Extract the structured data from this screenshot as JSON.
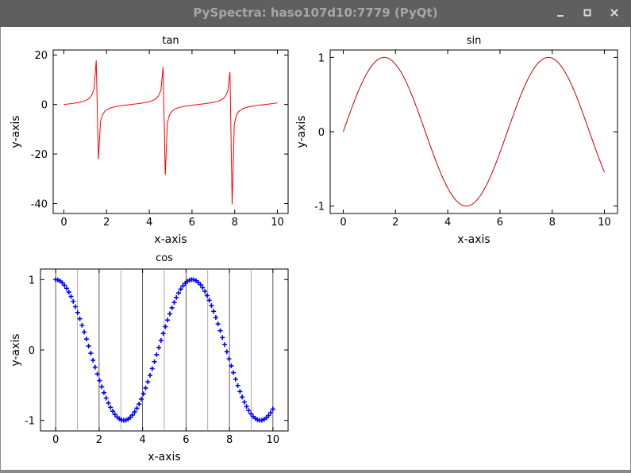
{
  "window": {
    "title": "PySpectra: haso107d10:7779 (PyQt)",
    "controls": [
      "minimize-icon",
      "maximize-icon",
      "close-icon"
    ]
  },
  "colors": {
    "titlebar_bg": "#5f5f5f",
    "titlebar_text": "#a6a6a6",
    "tan_line": "#ff0000",
    "sin_line": "#cc0000",
    "cos_marker": "#0000ff",
    "grid": "#000000"
  },
  "chart_data": [
    {
      "type": "line",
      "title": "tan",
      "xlabel": "x-axis",
      "ylabel": "y-axis",
      "function": "tan(x)",
      "x_range": [
        0,
        10
      ],
      "xlim": [
        -0.5,
        10.5
      ],
      "ylim": [
        -44,
        22
      ],
      "xticks": [
        0,
        2,
        4,
        6,
        8,
        10
      ],
      "yticks": [
        20,
        0,
        -20,
        -40
      ],
      "line_color": "#ff0000",
      "grid": false,
      "clip": [
        -40.5,
        17.8
      ]
    },
    {
      "type": "line",
      "title": "sin",
      "xlabel": "x-axis",
      "ylabel": "y-axis",
      "function": "sin(x)",
      "x_range": [
        0,
        10
      ],
      "xlim": [
        -0.5,
        10.5
      ],
      "ylim": [
        -1.1,
        1.1
      ],
      "xticks": [
        0,
        2,
        4,
        6,
        8,
        10
      ],
      "yticks": [
        1,
        0,
        -1
      ],
      "line_color": "#cc0000",
      "grid": false
    },
    {
      "type": "scatter",
      "title": "cos",
      "xlabel": "x-axis",
      "ylabel": "y-axis",
      "function": "cos(x)",
      "x_range": [
        0,
        10
      ],
      "n_points": 100,
      "xlim": [
        -0.7,
        10.7
      ],
      "ylim": [
        -1.15,
        1.15
      ],
      "xticks": [
        0,
        2,
        4,
        6,
        8,
        10
      ],
      "yticks": [
        1,
        0,
        -1
      ],
      "marker": "+",
      "marker_color": "#0000ff",
      "grid": "vertical"
    }
  ]
}
